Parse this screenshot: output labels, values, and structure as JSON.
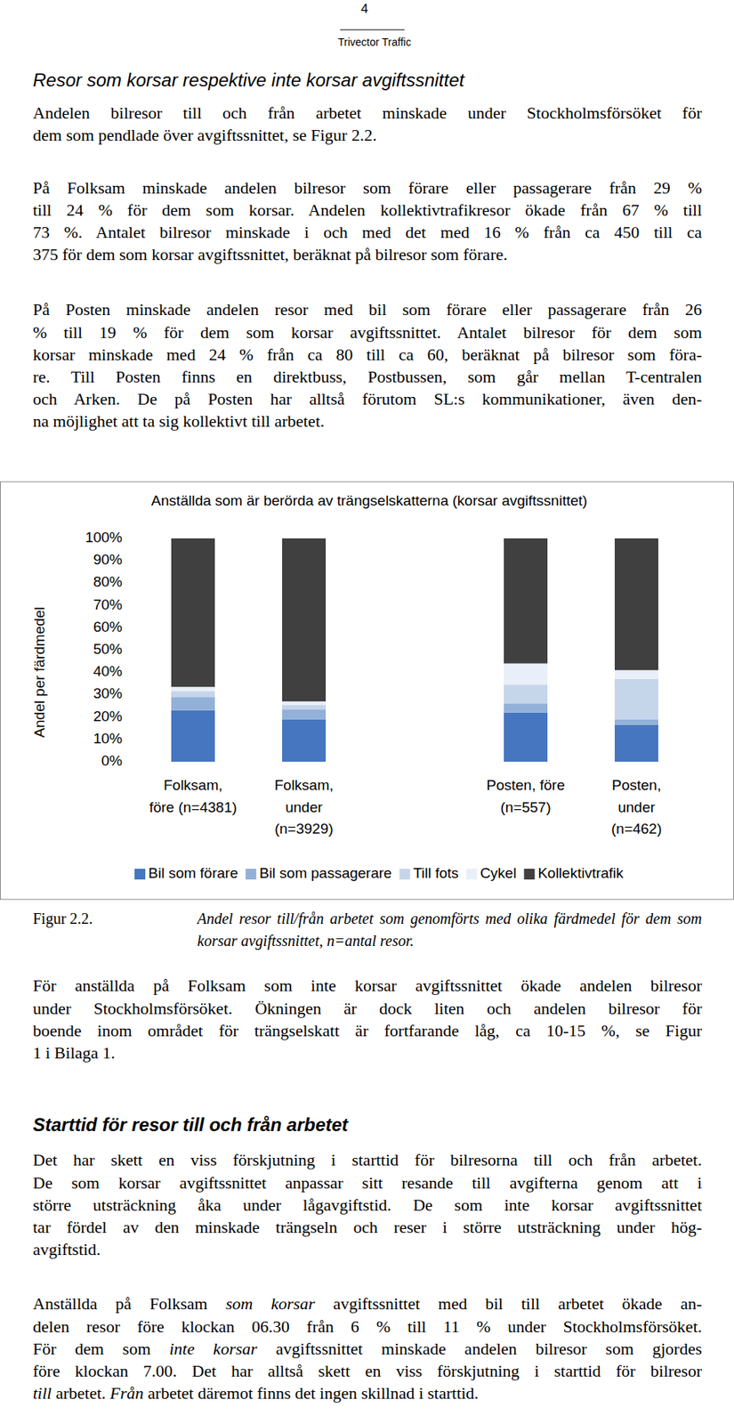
{
  "page_number": "4",
  "running_head": "Trivector Traffic",
  "heading_1": "Resor som korsar respektive inte korsar avgiftssnittet",
  "paragraphs_1": [
    [
      [
        "Andelen bilresor till och från arbetet minskade under Stockholmsförsöket för"
      ],
      [
        "dem som pendlade över avgiftssnittet, se Figur 2.2."
      ]
    ],
    [
      [
        "På Folksam minskade andelen bilresor som förare eller passagerare från 29 %"
      ],
      [
        "till 24 % för dem som korsar. Andelen kollektivtrafikresor ökade från 67 % till"
      ],
      [
        "73 %. Antalet bilresor minskade i och med det med 16 % från ca 450 till ca"
      ],
      [
        "375 för dem som korsar avgiftssnittet, beräknat på bilresor som förare."
      ]
    ],
    [
      [
        "På Posten minskade andelen resor med bil som förare eller passagerare från 26"
      ],
      [
        "% till 19 % för dem som korsar avgiftssnittet. Antalet bilresor för dem som"
      ],
      [
        "korsar minskade med 24 % från ca 80 till ca 60, beräknat på bilresor som föra-"
      ],
      [
        "re. Till Posten finns en direktbuss, Postbussen, som går mellan T-centralen"
      ],
      [
        "och Arken. De på Posten har alltså förutom SL:s kommunikationer, även den-"
      ],
      [
        "na möjlighet att ta sig kollektivt till arbetet."
      ]
    ]
  ],
  "chart_data": {
    "type": "bar",
    "stacked": true,
    "title": "Anställda som är berörda av trängselskatterna (korsar avgiftssnittet)",
    "y_label": "Andel per färdmedel",
    "categories": [
      "Folksam,\nföre (n=4381)",
      "Folksam,\nunder\n(n=3929)",
      null,
      "Posten, före\n(n=557)",
      "Posten,\nunder\n(n=462)"
    ],
    "series": [
      {
        "name": "Bil som förare",
        "color": "#4676c0",
        "values": [
          23,
          19,
          null,
          22,
          16.5
        ]
      },
      {
        "name": "Bil som passagerare",
        "color": "#93b1d8",
        "values": [
          6,
          4.5,
          null,
          4,
          2.5
        ]
      },
      {
        "name": "Till fots",
        "color": "#c5d5ea",
        "values": [
          2.5,
          2,
          null,
          8.5,
          18
        ]
      },
      {
        "name": "Cykel",
        "color": "#e9eff8",
        "values": [
          2,
          1.5,
          null,
          9.5,
          4
        ]
      },
      {
        "name": "Kollektivtrafik",
        "color": "#404040",
        "values": [
          66.5,
          73,
          null,
          56,
          59
        ]
      }
    ],
    "ylim": [
      0,
      100
    ],
    "yticks": [
      {
        "value": 0,
        "label": "0%"
      },
      {
        "value": 10,
        "label": "10%"
      },
      {
        "value": 20,
        "label": "20%"
      },
      {
        "value": 30,
        "label": "30%"
      },
      {
        "value": 40,
        "label": "40%"
      },
      {
        "value": 50,
        "label": "50%"
      },
      {
        "value": 60,
        "label": "60%"
      },
      {
        "value": 70,
        "label": "70%"
      },
      {
        "value": 80,
        "label": "80%"
      },
      {
        "value": 90,
        "label": "90%"
      },
      {
        "value": 100,
        "label": "100%"
      }
    ],
    "grid": false,
    "legend": "bottom"
  },
  "figure": {
    "number": "Figur 2.2.",
    "caption": [
      "Andel resor till/från arbetet som genomförts med olika färdmedel för dem som",
      "korsar avgiftssnittet, n=antal resor."
    ]
  },
  "paragraphs_2": [
    [
      [
        "För anställda på Folksam som inte korsar avgiftssnittet ökade andelen bilresor"
      ],
      [
        "under Stockholmsförsöket. Ökningen är dock liten och andelen bilresor för"
      ],
      [
        "boende inom området för trängselskatt är fortfarande låg, ca 10-15 %, se Figur"
      ],
      [
        "1 i Bilaga 1."
      ]
    ]
  ],
  "heading_2": "Starttid för resor till och från arbetet",
  "paragraphs_3": [
    [
      [
        "Det har skett en viss förskjutning i starttid för bilresorna till och från arbetet."
      ],
      [
        "De som korsar avgiftssnittet anpassar sitt resande till avgifterna genom att i"
      ],
      [
        "större utsträckning åka under lågavgiftstid. De som inte korsar avgiftssnittet"
      ],
      [
        "tar fördel av den minskade trängseln och reser i större utsträckning under hög-"
      ],
      [
        "avgiftstid."
      ]
    ],
    [
      [
        "Anställda på Folksam ",
        {
          "em": "som korsar"
        },
        " avgiftssnittet med bil till arbetet ökade an-"
      ],
      [
        "delen resor före klockan 06.30 från 6 % till 11 % under Stockholmsförsöket."
      ],
      [
        "För dem som ",
        {
          "em": "inte korsar"
        },
        " avgiftssnittet minskade andelen bilresor som gjordes"
      ],
      [
        "före klockan 7.00. Det har alltså skett en viss förskjutning i starttid för bilresor"
      ],
      [
        {
          "em": "till"
        },
        " arbetet. ",
        {
          "em": "Från"
        },
        " arbetet däremot finns det ingen skillnad i starttid."
      ]
    ]
  ]
}
